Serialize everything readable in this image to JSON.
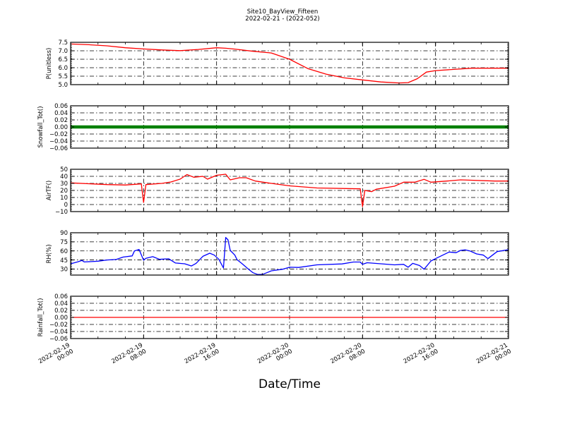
{
  "chart_data": {
    "title": "Site10_BayView_Fifteen",
    "subtitle": "2022-02-21 - (2022-052)",
    "xlabel": "Date/Time",
    "xlim": [
      "2022-02-19 00:00",
      "2022-02-21 00:00"
    ],
    "x_ticks": [
      {
        "date": "2022-02-19",
        "time": "00:00",
        "at": "2022-02-19 00:00"
      },
      {
        "date": "2022-02-19",
        "time": "08:00",
        "at": "2022-02-19 08:00"
      },
      {
        "date": "2022-02-19",
        "time": "16:00",
        "at": "2022-02-19 16:00"
      },
      {
        "date": "2022-02-20",
        "time": "00:00",
        "at": "2022-02-20 00:00"
      },
      {
        "date": "2022-02-20",
        "time": "08:00",
        "at": "2022-02-20 08:00"
      },
      {
        "date": "2022-02-20",
        "time": "16:00",
        "at": "2022-02-20 16:00"
      },
      {
        "date": "2022-02-21",
        "time": "00:00",
        "at": "2022-02-21 00:00"
      }
    ],
    "grid": true,
    "panels": [
      {
        "type": "line",
        "ylabel": "P(unitless)",
        "color": "#ff0000",
        "ylim": [
          5.0,
          7.5
        ],
        "yticks": [
          5.0,
          5.5,
          6.0,
          6.5,
          7.0,
          7.5
        ],
        "ytick_labels": [
          "5.0",
          "5.5",
          "6.0",
          "6.5",
          "7.0",
          "7.5"
        ],
        "points": [
          [
            "2022-02-19 00:00",
            7.4
          ],
          [
            "2022-02-19 02:00",
            7.36
          ],
          [
            "2022-02-19 04:00",
            7.29
          ],
          [
            "2022-02-19 06:00",
            7.18
          ],
          [
            "2022-02-19 08:00",
            7.11
          ],
          [
            "2022-02-19 10:00",
            7.05
          ],
          [
            "2022-02-19 12:00",
            7.01
          ],
          [
            "2022-02-19 14:00",
            7.08
          ],
          [
            "2022-02-19 16:00",
            7.18
          ],
          [
            "2022-02-19 17:00",
            7.15
          ],
          [
            "2022-02-19 18:00",
            7.1
          ],
          [
            "2022-02-19 20:00",
            6.97
          ],
          [
            "2022-02-19 22:00",
            6.87
          ],
          [
            "2022-02-20 00:00",
            6.5
          ],
          [
            "2022-02-20 02:00",
            5.95
          ],
          [
            "2022-02-20 04:00",
            5.62
          ],
          [
            "2022-02-20 06:00",
            5.4
          ],
          [
            "2022-02-20 08:00",
            5.28
          ],
          [
            "2022-02-20 10:00",
            5.16
          ],
          [
            "2022-02-20 12:00",
            5.1
          ],
          [
            "2022-02-20 13:00",
            5.12
          ],
          [
            "2022-02-20 14:00",
            5.35
          ],
          [
            "2022-02-20 15:00",
            5.74
          ],
          [
            "2022-02-20 16:00",
            5.83
          ],
          [
            "2022-02-20 18:00",
            5.9
          ],
          [
            "2022-02-20 20:00",
            5.97
          ],
          [
            "2022-02-21 00:00",
            5.97
          ]
        ]
      },
      {
        "type": "line",
        "ylabel": "Snowfall_Tot()",
        "color": "#008000",
        "ylim": [
          -0.06,
          0.06
        ],
        "yticks": [
          -0.06,
          -0.04,
          -0.02,
          0.0,
          0.02,
          0.04,
          0.06
        ],
        "ytick_labels": [
          "−0.06",
          "−0.04",
          "−0.02",
          "0.00",
          "0.02",
          "0.04",
          "0.06"
        ],
        "points": [
          [
            "2022-02-19 00:00",
            0.0
          ],
          [
            "2022-02-21 00:00",
            0.0
          ]
        ]
      },
      {
        "type": "line",
        "ylabel": "AirTF()",
        "color": "#ff0000",
        "ylim": [
          -10,
          50
        ],
        "yticks": [
          -10,
          0,
          10,
          20,
          30,
          40,
          50
        ],
        "ytick_labels": [
          "−10",
          "0",
          "10",
          "20",
          "30",
          "40",
          "50"
        ],
        "points": [
          [
            "2022-02-19 00:00",
            30.7
          ],
          [
            "2022-02-19 04:00",
            28.3
          ],
          [
            "2022-02-19 06:00",
            27.7
          ],
          [
            "2022-02-19 07:45",
            29.3
          ],
          [
            "2022-02-19 08:00",
            3.0
          ],
          [
            "2022-02-19 08:15",
            28.3
          ],
          [
            "2022-02-19 10:00",
            30.0
          ],
          [
            "2022-02-19 11:00",
            32.0
          ],
          [
            "2022-02-19 12:00",
            36.0
          ],
          [
            "2022-02-19 12:45",
            42.5
          ],
          [
            "2022-02-19 13:30",
            38.7
          ],
          [
            "2022-02-19 14:30",
            40.0
          ],
          [
            "2022-02-19 15:00",
            36.0
          ],
          [
            "2022-02-19 16:00",
            41.5
          ],
          [
            "2022-02-19 17:00",
            43.0
          ],
          [
            "2022-02-19 17:30",
            35.0
          ],
          [
            "2022-02-19 18:30",
            38.0
          ],
          [
            "2022-02-19 19:15",
            38.0
          ],
          [
            "2022-02-19 20:15",
            33.3
          ],
          [
            "2022-02-19 22:00",
            30.0
          ],
          [
            "2022-02-20 00:00",
            26.5
          ],
          [
            "2022-02-20 03:00",
            23.5
          ],
          [
            "2022-02-20 07:45",
            22.3
          ],
          [
            "2022-02-20 08:00",
            -3.0
          ],
          [
            "2022-02-20 08:15",
            20.0
          ],
          [
            "2022-02-20 09:00",
            18.3
          ],
          [
            "2022-02-20 09:30",
            21.7
          ],
          [
            "2022-02-20 11:30",
            26.0
          ],
          [
            "2022-02-20 12:30",
            31.7
          ],
          [
            "2022-02-20 13:45",
            31.7
          ],
          [
            "2022-02-20 14:45",
            35.7
          ],
          [
            "2022-02-20 15:30",
            31.7
          ],
          [
            "2022-02-20 17:15",
            33.3
          ],
          [
            "2022-02-20 18:45",
            35.0
          ],
          [
            "2022-02-20 22:30",
            33.3
          ],
          [
            "2022-02-21 00:00",
            33.3
          ]
        ]
      },
      {
        "type": "line",
        "ylabel": "RH(%)",
        "color": "#0000ff",
        "ylim": [
          20,
          90
        ],
        "yticks": [
          30,
          45,
          60,
          75,
          90
        ],
        "ytick_labels": [
          "30",
          "45",
          "60",
          "75",
          "90"
        ],
        "points": [
          [
            "2022-02-19 00:00",
            38.7
          ],
          [
            "2022-02-19 00:45",
            41.7
          ],
          [
            "2022-02-19 01:15",
            44.1
          ],
          [
            "2022-02-19 01:30",
            41.7
          ],
          [
            "2022-02-19 03:00",
            43.0
          ],
          [
            "2022-02-19 04:00",
            45.0
          ],
          [
            "2022-02-19 05:00",
            45.8
          ],
          [
            "2022-02-19 05:45",
            49.7
          ],
          [
            "2022-02-19 06:45",
            51.7
          ],
          [
            "2022-02-19 07:00",
            60.0
          ],
          [
            "2022-02-19 07:30",
            62.4
          ],
          [
            "2022-02-19 08:00",
            44.6
          ],
          [
            "2022-02-19 08:15",
            47.8
          ],
          [
            "2022-02-19 09:00",
            50.4
          ],
          [
            "2022-02-19 09:45",
            46.0
          ],
          [
            "2022-02-19 10:45",
            47.0
          ],
          [
            "2022-02-19 11:30",
            40.0
          ],
          [
            "2022-02-19 12:30",
            38.7
          ],
          [
            "2022-02-19 13:15",
            35.0
          ],
          [
            "2022-02-19 13:45",
            39.4
          ],
          [
            "2022-02-19 14:30",
            51.0
          ],
          [
            "2022-02-19 15:15",
            56.2
          ],
          [
            "2022-02-19 15:45",
            53.0
          ],
          [
            "2022-02-19 16:15",
            46.0
          ],
          [
            "2022-02-19 16:45",
            31.7
          ],
          [
            "2022-02-19 17:00",
            82.2
          ],
          [
            "2022-02-19 17:15",
            78.3
          ],
          [
            "2022-02-19 17:30",
            60.8
          ],
          [
            "2022-02-19 18:00",
            53.0
          ],
          [
            "2022-02-19 18:15",
            45.3
          ],
          [
            "2022-02-19 18:45",
            39.4
          ],
          [
            "2022-02-19 19:30",
            29.7
          ],
          [
            "2022-02-19 20:00",
            23.9
          ],
          [
            "2022-02-19 20:30",
            20.9
          ],
          [
            "2022-02-19 21:00",
            20.9
          ],
          [
            "2022-02-19 21:30",
            23.9
          ],
          [
            "2022-02-19 22:00",
            27.0
          ],
          [
            "2022-02-19 23:15",
            29.7
          ],
          [
            "2022-02-20 00:00",
            33.0
          ],
          [
            "2022-02-20 01:00",
            32.6
          ],
          [
            "2022-02-20 03:00",
            36.9
          ],
          [
            "2022-02-20 05:45",
            38.4
          ],
          [
            "2022-02-20 07:00",
            41.6
          ],
          [
            "2022-02-20 07:45",
            41.6
          ],
          [
            "2022-02-20 08:00",
            37.7
          ],
          [
            "2022-02-20 08:30",
            40.4
          ],
          [
            "2022-02-20 11:30",
            36.9
          ],
          [
            "2022-02-20 12:30",
            37.7
          ],
          [
            "2022-02-20 13:00",
            33.0
          ],
          [
            "2022-02-20 13:30",
            39.4
          ],
          [
            "2022-02-20 14:15",
            35.7
          ],
          [
            "2022-02-20 14:45",
            29.7
          ],
          [
            "2022-02-20 15:30",
            43.3
          ],
          [
            "2022-02-20 16:00",
            47.2
          ],
          [
            "2022-02-20 17:30",
            58.2
          ],
          [
            "2022-02-20 18:15",
            57.0
          ],
          [
            "2022-02-20 18:45",
            60.8
          ],
          [
            "2022-02-20 19:15",
            61.7
          ],
          [
            "2022-02-20 19:45",
            60.0
          ],
          [
            "2022-02-20 20:30",
            55.0
          ],
          [
            "2022-02-20 21:15",
            53.0
          ],
          [
            "2022-02-20 21:45",
            47.2
          ],
          [
            "2022-02-20 22:45",
            58.9
          ],
          [
            "2022-02-21 00:00",
            62.0
          ]
        ]
      },
      {
        "type": "line",
        "ylabel": "Rainfall_Tot()",
        "color": "#ff0000",
        "ylim": [
          -0.06,
          0.06
        ],
        "yticks": [
          -0.06,
          -0.04,
          -0.02,
          0.0,
          0.02,
          0.04,
          0.06
        ],
        "ytick_labels": [
          "−0.06",
          "−0.04",
          "−0.02",
          "0.00",
          "0.02",
          "0.04",
          "0.06"
        ],
        "points": [
          [
            "2022-02-19 00:00",
            0.0
          ],
          [
            "2022-02-21 00:00",
            0.0
          ]
        ]
      }
    ]
  }
}
